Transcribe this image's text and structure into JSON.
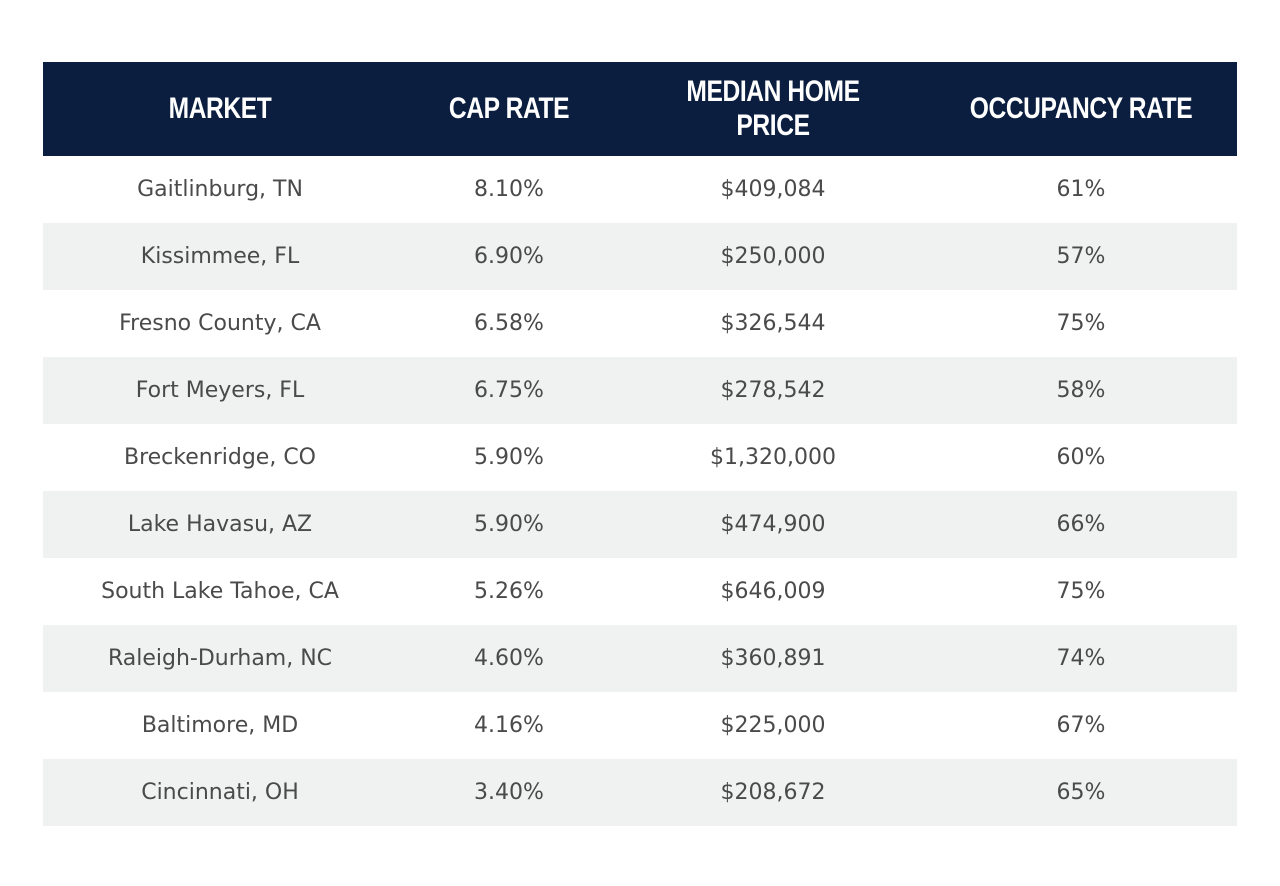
{
  "table": {
    "headers": [
      "MARKET",
      "CAP RATE",
      "MEDIAN HOME PRICE",
      "OCCUPANCY RATE"
    ],
    "rows": [
      [
        "Gaitlinburg, TN",
        "8.10%",
        "$409,084",
        "61%"
      ],
      [
        "Kissimmee, FL",
        "6.90%",
        "$250,000",
        "57%"
      ],
      [
        "Fresno County, CA",
        "6.58%",
        "$326,544",
        "75%"
      ],
      [
        "Fort Meyers, FL",
        "6.75%",
        "$278,542",
        "58%"
      ],
      [
        "Breckenridge, CO",
        "5.90%",
        "$1,320,000",
        "60%"
      ],
      [
        "Lake Havasu, AZ",
        "5.90%",
        "$474,900",
        "66%"
      ],
      [
        "South Lake Tahoe, CA",
        "5.26%",
        "$646,009",
        "75%"
      ],
      [
        "Raleigh-Durham, NC",
        "4.60%",
        "$360,891",
        "74%"
      ],
      [
        "Baltimore, MD",
        "4.16%",
        "$225,000",
        "67%"
      ],
      [
        "Cincinnati, OH",
        "3.40%",
        "$208,672",
        "65%"
      ]
    ],
    "colors": {
      "header_bg": "#0b1e3f",
      "header_text": "#ffffff",
      "stripe": "#f0f1f1",
      "text": "#4a4a4a"
    }
  }
}
